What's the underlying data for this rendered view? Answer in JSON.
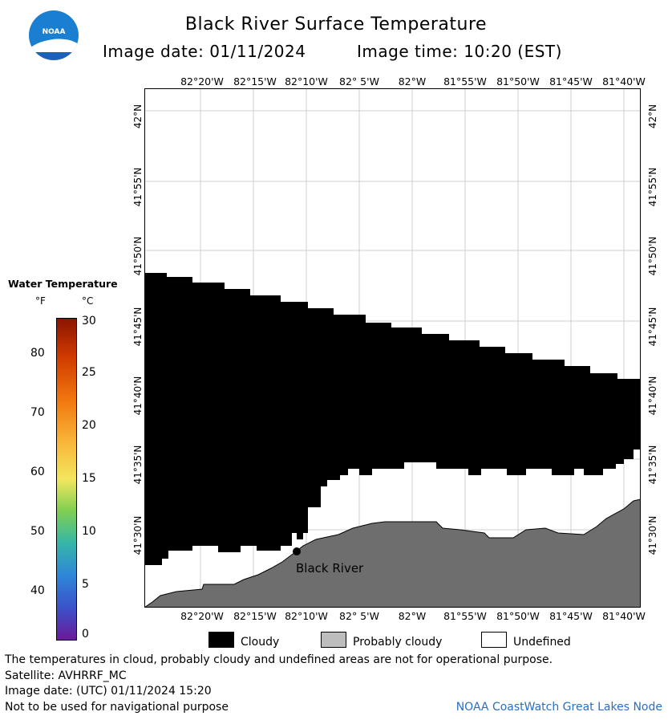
{
  "header": {
    "logo_text": "NOAA",
    "title": "Black River Surface Temperature",
    "image_date": "Image date: 01/11/2024",
    "image_time": "Image time: 10:20 (EST)"
  },
  "map": {
    "lon_labels": [
      "82°20'W",
      "82°15'W",
      "82°10'W",
      "82° 5'W",
      "82°W",
      "81°55'W",
      "81°50'W",
      "81°45'W",
      "81°40'W"
    ],
    "lat_labels": [
      "42°N",
      "41°55'N",
      "41°50'N",
      "41°45'N",
      "41°40'N",
      "41°35'N",
      "41°30'N"
    ],
    "station_label": "Black River",
    "colors": {
      "cloudy": "#000000",
      "probably_cloudy": "#6e6e6e",
      "undefined": "#ffffff",
      "grid": "#cccccc"
    }
  },
  "legend": {
    "title": "Water Temperature",
    "unit_f": "°F",
    "unit_c": "°C",
    "f_ticks": [
      "80",
      "70",
      "60",
      "50",
      "40"
    ],
    "c_ticks": [
      "30",
      "25",
      "20",
      "15",
      "10",
      "5",
      "0"
    ]
  },
  "key": {
    "cloudy": "Cloudy",
    "probably_cloudy": "Probably cloudy",
    "undefined": "Undefined"
  },
  "footer": {
    "note": "The temperatures in cloud, probably cloudy and undefined areas are not for operational purpose.",
    "satellite": "Satellite: AVHRRF_MC",
    "utc_date": "Image date: (UTC) 01/11/2024  15:20",
    "nav": "Not to be used for navigational purpose",
    "credit": "NOAA CoastWatch Great Lakes Node"
  }
}
